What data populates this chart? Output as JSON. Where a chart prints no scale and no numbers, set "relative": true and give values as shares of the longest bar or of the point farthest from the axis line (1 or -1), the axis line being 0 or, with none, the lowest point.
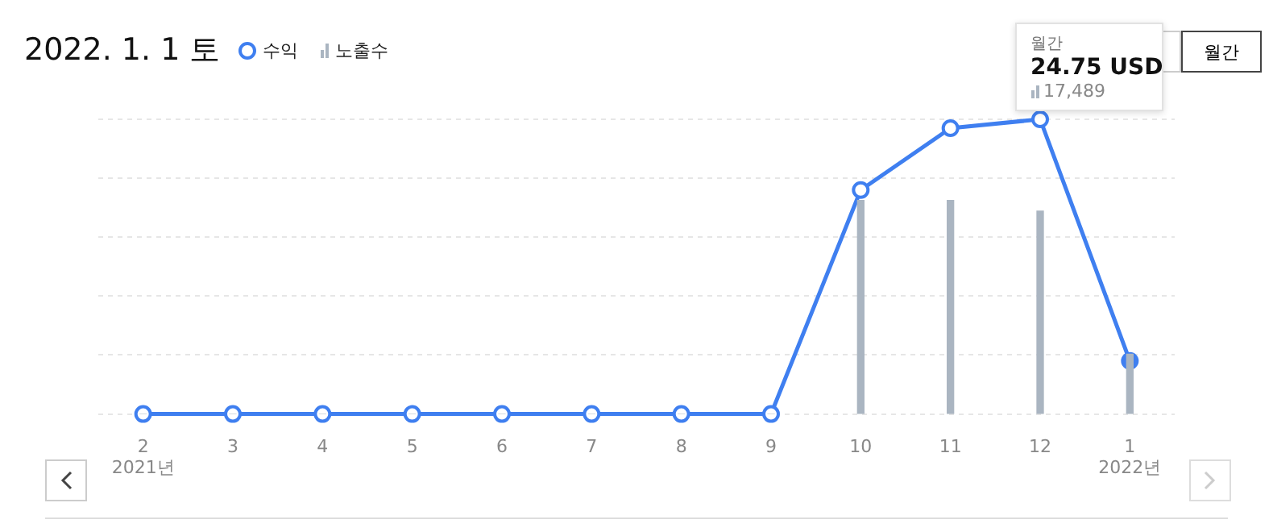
{
  "chart_data": {
    "type": "line",
    "title": "2022. 1. 1 토",
    "relative": true,
    "legend": "top left",
    "grid": "y",
    "marker": "circle",
    "categories": [
      "2",
      "3",
      "4",
      "5",
      "6",
      "7",
      "8",
      "9",
      "10",
      "11",
      "12",
      "1"
    ],
    "series": [
      {
        "name": "수익",
        "color": "#3f7ff0",
        "values": [
          0,
          0,
          0,
          0,
          0,
          0,
          0,
          0,
          0.76,
          0.97,
          1,
          0.18
        ]
      },
      {
        "name": "노출수",
        "type": "bar",
        "axis": "y2",
        "color": "#aab5c1",
        "values": [
          0,
          0,
          0,
          0,
          0,
          0,
          0,
          0,
          1,
          1,
          0.95,
          0.28
        ]
      }
    ],
    "annotations": [
      "2021년",
      "2022년",
      "월간",
      "월간",
      "24.75 USD",
      "17,489"
    ]
  }
}
